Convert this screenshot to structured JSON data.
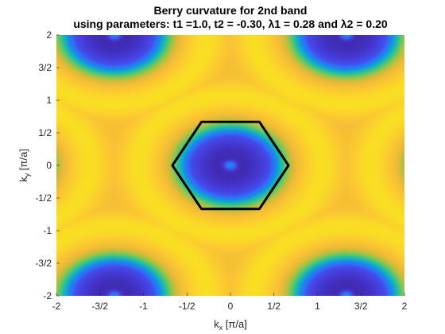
{
  "chart_data": {
    "type": "heatmap",
    "title": "Berry curvature for 2nd band",
    "subtitle": "using parameters: t1 =1.0, t2 = -0.30, λ1 = 0.28 and λ2 = 0.20",
    "xlabel": {
      "base": "k",
      "sub": "x",
      "unit": "π/a"
    },
    "ylabel": {
      "base": "k",
      "sub": "y",
      "unit": "π/a"
    },
    "xlim": [
      -2,
      2
    ],
    "ylim": [
      -2,
      2
    ],
    "x_ticks": [
      {
        "value": -2,
        "label": "-2"
      },
      {
        "value": -1.5,
        "label": "-3/2"
      },
      {
        "value": -1,
        "label": "-1"
      },
      {
        "value": -0.5,
        "label": "-1/2"
      },
      {
        "value": 0,
        "label": "0"
      },
      {
        "value": 0.5,
        "label": "1/2"
      },
      {
        "value": 1,
        "label": "1"
      },
      {
        "value": 1.5,
        "label": "3/2"
      },
      {
        "value": 2,
        "label": "2"
      }
    ],
    "y_ticks": [
      {
        "value": -2,
        "label": "-2"
      },
      {
        "value": -1.5,
        "label": "-3/2"
      },
      {
        "value": -1,
        "label": "-1"
      },
      {
        "value": -0.5,
        "label": "-1/2"
      },
      {
        "value": 0,
        "label": "0"
      },
      {
        "value": 0.5,
        "label": "1/2"
      },
      {
        "value": 1,
        "label": "1"
      },
      {
        "value": 1.5,
        "label": "3/2"
      },
      {
        "value": 2,
        "label": "2"
      }
    ],
    "colormap": "parula",
    "minima_centers": [
      [
        0,
        0
      ],
      [
        -1.333,
        2
      ],
      [
        1.333,
        2
      ],
      [
        -1.333,
        -2
      ],
      [
        1.333,
        -2
      ],
      [
        -2.667,
        0
      ],
      [
        2.667,
        0
      ]
    ],
    "brillouin_zone": {
      "color": "#000000",
      "vertices": [
        [
          -0.667,
          0
        ],
        [
          -0.333,
          0.667
        ],
        [
          0.333,
          0.667
        ],
        [
          0.667,
          0
        ],
        [
          0.333,
          -0.667
        ],
        [
          -0.333,
          -0.667
        ]
      ]
    }
  }
}
